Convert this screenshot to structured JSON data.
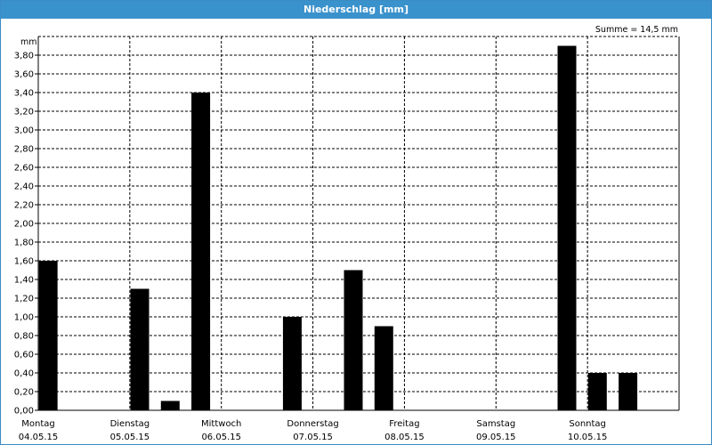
{
  "window": {
    "title": "Niederschlag [mm]"
  },
  "chart_data": {
    "type": "bar",
    "title": "Niederschlag [mm]",
    "ylabel": "mm",
    "summary": "Summe = 14,5 mm",
    "ylim": [
      0,
      4.0
    ],
    "yticks": [
      "0,00",
      "0,20",
      "0,40",
      "0,60",
      "0,80",
      "1,00",
      "1,20",
      "1,40",
      "1,60",
      "1,80",
      "2,00",
      "2,20",
      "2,40",
      "2,60",
      "2,80",
      "3,00",
      "3,20",
      "3,40",
      "3,60",
      "3,80"
    ],
    "days": [
      {
        "name": "Montag",
        "date": "04.05.15"
      },
      {
        "name": "Dienstag",
        "date": "05.05.15"
      },
      {
        "name": "Mittwoch",
        "date": "06.05.15"
      },
      {
        "name": "Donnerstag",
        "date": "07.05.15"
      },
      {
        "name": "Freitag",
        "date": "08.05.15"
      },
      {
        "name": "Samstag",
        "date": "09.05.15"
      },
      {
        "name": "Sonntag",
        "date": "10.05.15"
      }
    ],
    "intervals_per_day": 3,
    "values": [
      1.6,
      0,
      0,
      1.3,
      0.1,
      3.4,
      0,
      0,
      1.0,
      0,
      1.5,
      0.9,
      0,
      0,
      0,
      0,
      0,
      3.9,
      0.4,
      0.4,
      0
    ],
    "grid": true
  }
}
